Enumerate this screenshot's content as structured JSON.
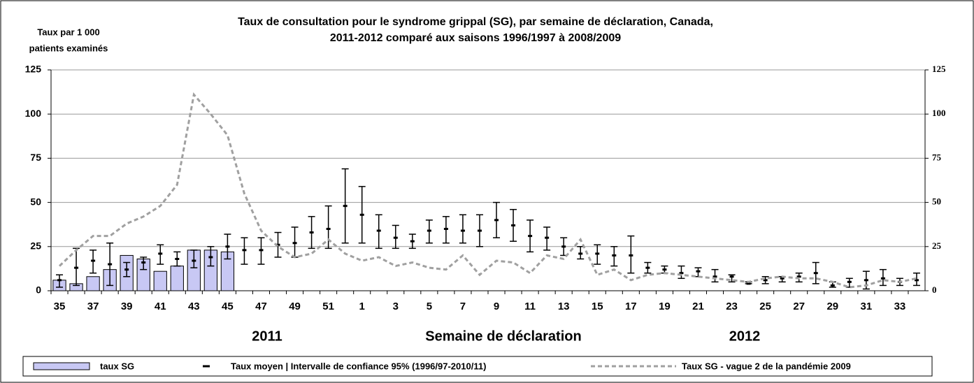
{
  "chart_data": {
    "type": "bar",
    "title": [
      "Taux de consultation pour le syndrome grippal (SG), par semaine de déclaration, Canada,",
      "2011-2012 comparé aux saisons 1996/1997 à 2008/2009"
    ],
    "ylabel": [
      "Taux par 1 000",
      "patients examinés"
    ],
    "xlabel": "Semaine de déclaration",
    "year_labels": [
      "2011",
      "2012"
    ],
    "categories": [
      "35",
      null,
      "37",
      null,
      "39",
      null,
      "41",
      null,
      "43",
      null,
      "45",
      null,
      "47",
      null,
      "49",
      null,
      "51",
      null,
      "1",
      null,
      "3",
      null,
      "5",
      null,
      "7",
      null,
      "9",
      null,
      "11",
      null,
      "13",
      null,
      "15",
      null,
      "17",
      null,
      "19",
      null,
      "21",
      null,
      "23",
      null,
      "25",
      null,
      "27",
      null,
      "29",
      null,
      "31",
      null,
      "33",
      null
    ],
    "series": [
      {
        "name": "taux SG",
        "type": "bar",
        "color": "#c8c8f4",
        "values": [
          6,
          4,
          8,
          12,
          20,
          18,
          11,
          14,
          23,
          23,
          22,
          null,
          null,
          null,
          null,
          null,
          null,
          null,
          null,
          null,
          null,
          null,
          null,
          null,
          null,
          null,
          null,
          null,
          null,
          null,
          null,
          null,
          null,
          null,
          null,
          null,
          null,
          null,
          null,
          null,
          null,
          null,
          null,
          null,
          null,
          null,
          null,
          null,
          null,
          null,
          null,
          null
        ]
      },
      {
        "name": "Taux moyen | Intervalle de confiance 95% (1996/97-2010/11)",
        "type": "errorbar",
        "color": "#000000",
        "values": [
          6,
          13,
          17,
          15,
          12,
          16,
          21,
          18,
          17,
          19,
          25,
          23,
          23,
          26,
          27,
          33,
          35,
          48,
          43,
          34,
          30,
          28,
          34,
          35,
          34,
          34,
          40,
          37,
          31,
          30,
          25,
          21,
          21,
          20,
          20,
          13,
          12,
          10,
          11,
          8,
          8,
          4,
          6,
          7,
          8,
          10,
          3,
          5,
          6,
          7,
          5,
          6
        ],
        "low": [
          2,
          3,
          10,
          3,
          8,
          12,
          15,
          14,
          13,
          14,
          18,
          15,
          15,
          19,
          19,
          24,
          24,
          27,
          27,
          24,
          24,
          24,
          27,
          27,
          27,
          25,
          30,
          28,
          22,
          23,
          20,
          18,
          15,
          14,
          10,
          10,
          10,
          7,
          8,
          5,
          5,
          4,
          4,
          5,
          5,
          4,
          2,
          2,
          1,
          3,
          3,
          3
        ],
        "high": [
          9,
          24,
          23,
          27,
          16,
          19,
          26,
          22,
          23,
          25,
          32,
          30,
          30,
          33,
          36,
          42,
          48,
          69,
          59,
          43,
          37,
          32,
          40,
          42,
          43,
          43,
          50,
          46,
          40,
          36,
          30,
          25,
          26,
          25,
          31,
          16,
          14,
          14,
          13,
          12,
          9,
          5,
          8,
          8,
          10,
          16,
          5,
          7,
          11,
          12,
          7,
          10
        ]
      },
      {
        "name": "Taux SG - vague 2 de la pandémie 2009",
        "type": "line",
        "color": "#a0a0a0",
        "values": [
          14,
          23,
          31,
          31,
          38,
          42,
          48,
          60,
          111,
          100,
          88,
          55,
          34,
          25,
          19,
          21,
          29,
          21,
          17,
          19,
          14,
          16,
          13,
          12,
          20,
          9,
          17,
          16,
          10,
          20,
          18,
          29,
          9,
          12,
          6,
          9,
          10,
          9,
          8,
          7,
          6,
          5,
          7,
          8,
          7,
          7,
          5,
          2,
          3,
          6,
          5,
          7
        ]
      }
    ],
    "ylim": [
      0,
      125
    ],
    "yticks": [
      0,
      25,
      50,
      75,
      100,
      125
    ],
    "y2lim": [
      0,
      125
    ],
    "y2ticks": [
      0,
      25,
      50,
      75,
      100,
      125
    ],
    "grid": true
  }
}
